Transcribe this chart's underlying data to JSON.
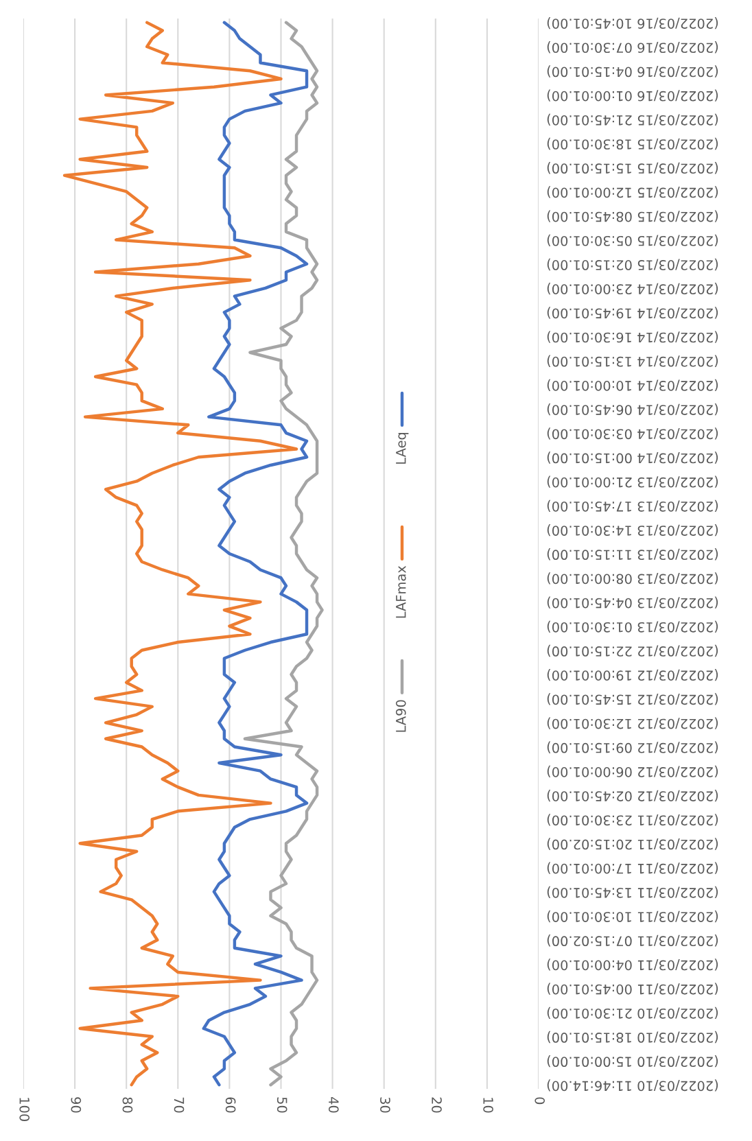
{
  "chart_data": {
    "type": "line",
    "orientation": "horizontal",
    "categories": [
      "(2022/03/16 10:45:01.00)",
      null,
      null,
      "(2022/03/16 07:30:01.00)",
      null,
      null,
      "(2022/03/16 04:15:01.00)",
      null,
      null,
      "(2022/03/16 01:00:01.00)",
      null,
      null,
      "(2022/03/15 21:45:01.00)",
      null,
      null,
      "(2022/03/15 18:30:01.00)",
      null,
      null,
      "(2022/03/15 15:15:01.00)",
      null,
      null,
      "(2022/03/15 12:00:01.00)",
      null,
      null,
      "(2022/03/15 08:45:01.00)",
      null,
      null,
      "(2022/03/15 05:30:01.00)",
      null,
      null,
      "(2022/03/15 02:15:01.00)",
      null,
      null,
      "(2022/03/14 23:00:01.00)",
      null,
      null,
      "(2022/03/14 19:45:01.00)",
      null,
      null,
      "(2022/03/14 16:30:01.00)",
      null,
      null,
      "(2022/03/14 13:15:01.00)",
      null,
      null,
      "(2022/03/14 10:00:01.00)",
      null,
      null,
      "(2022/03/14 06:45:01.00)",
      null,
      null,
      "(2022/03/14 03:30:01.00)",
      null,
      null,
      "(2022/03/14 00:15:01.00)",
      null,
      null,
      "(2022/03/13 21:00:01.00)",
      null,
      null,
      "(2022/03/13 17:45:01.00)",
      null,
      null,
      "(2022/03/13 14:30:01.00)",
      null,
      null,
      "(2022/03/13 11:15:01.00)",
      null,
      null,
      "(2022/03/13 08:00:01.00)",
      null,
      null,
      "(2022/03/13 04:45:01.00)",
      null,
      null,
      "(2022/03/13 01:30:01.00)",
      null,
      null,
      "(2022/03/12 22:15:01.00)",
      null,
      null,
      "(2022/03/12 19:00:01.00)",
      null,
      null,
      "(2022/03/12 15:45:01.00)",
      null,
      null,
      "(2022/03/12 12:30:01.00)",
      null,
      null,
      "(2022/03/12 09:15:01.00)",
      null,
      null,
      "(2022/03/12 06:00:01.00)",
      null,
      null,
      "(2022/03/12 02:45:01.00)",
      null,
      null,
      "(2022/03/11 23:30:01.00)",
      null,
      null,
      "(2022/03/11 20:15:02.00)",
      null,
      null,
      "(2022/03/11 17:00:01.00)",
      null,
      null,
      "(2022/03/11 13:45:01.00)",
      null,
      null,
      "(2022/03/11 10:30:01.00)",
      null,
      null,
      "(2022/03/11 07:15:02.00)",
      null,
      null,
      "(2022/03/11 04:00:01.00)",
      null,
      null,
      "(2022/03/11 00:45:01.00)",
      null,
      null,
      "(2022/03/10 21:30:01.00)",
      null,
      null,
      "(2022/03/10 18:15:01.00)",
      null,
      null,
      "(2022/03/10 15:00:01.00)",
      null,
      null,
      "(2022/03/10 11:46:14.00)"
    ],
    "series": [
      {
        "name": "LAeq",
        "color": "#4472c4",
        "values": [
          61,
          59,
          58,
          56,
          54,
          54,
          45,
          45,
          45,
          52,
          50,
          57,
          60,
          61,
          61,
          60,
          61,
          62,
          60,
          61,
          61,
          61,
          61,
          61,
          60,
          60,
          59,
          59,
          50,
          47,
          45,
          49,
          49,
          53,
          59,
          58,
          61,
          60,
          60,
          61,
          60,
          61,
          62,
          63,
          61,
          60,
          59,
          59,
          60,
          64,
          50,
          49,
          45,
          46,
          45,
          52,
          57,
          60,
          62,
          60,
          61,
          60,
          59,
          60,
          61,
          62,
          60,
          56,
          54,
          50,
          49,
          50,
          47,
          45,
          45,
          45,
          45,
          52,
          57,
          61,
          61,
          61,
          59,
          60,
          61,
          60,
          61,
          62,
          61,
          61,
          59,
          50,
          62,
          54,
          52,
          47,
          47,
          45,
          49,
          56,
          59,
          60,
          61,
          61,
          62,
          61,
          60,
          62,
          63,
          62,
          61,
          60,
          60,
          58,
          59,
          59,
          50,
          55,
          50,
          46,
          55,
          53,
          56,
          61,
          64,
          65,
          61,
          60,
          59,
          61,
          61,
          63,
          62
        ]
      },
      {
        "name": "LAFmax",
        "color": "#ed7d31",
        "values": [
          76,
          73,
          75,
          76,
          72,
          73,
          56,
          50,
          63,
          84,
          71,
          75,
          89,
          78,
          78,
          77,
          76,
          89,
          76,
          92,
          86,
          80,
          78,
          76,
          77,
          79,
          75,
          82,
          59,
          56,
          66,
          86,
          56,
          71,
          82,
          75,
          80,
          77,
          77,
          77,
          78,
          79,
          80,
          78,
          86,
          78,
          77,
          77,
          73,
          88,
          68,
          70,
          54,
          47,
          66,
          71,
          75,
          78,
          84,
          82,
          78,
          77,
          78,
          77,
          77,
          77,
          78,
          77,
          73,
          68,
          66,
          68,
          54,
          61,
          56,
          60,
          56,
          70,
          77,
          79,
          79,
          78,
          80,
          77,
          86,
          75,
          78,
          84,
          77,
          84,
          77,
          75,
          72,
          70,
          73,
          70,
          66,
          52,
          70,
          75,
          75,
          77,
          89,
          78,
          82,
          82,
          81,
          82,
          85,
          79,
          77,
          75,
          74,
          75,
          74,
          77,
          71,
          72,
          70,
          54,
          87,
          70,
          73,
          79,
          77,
          89,
          75,
          77,
          74,
          77,
          76,
          78,
          79
        ]
      },
      {
        "name": "LA90",
        "color": "#a5a5a5",
        "values": [
          49,
          47,
          48,
          46,
          45,
          44,
          43,
          44,
          43,
          44,
          43,
          45,
          45,
          46,
          47,
          47,
          47,
          49,
          47,
          49,
          49,
          48,
          49,
          47,
          47,
          49,
          49,
          45,
          45,
          44,
          43,
          44,
          43,
          44,
          46,
          46,
          46,
          47,
          50,
          48,
          49,
          56,
          50,
          50,
          49,
          49,
          48,
          50,
          49,
          47,
          45,
          44,
          43,
          43,
          43,
          43,
          43,
          45,
          46,
          47,
          47,
          46,
          46,
          47,
          48,
          47,
          47,
          46,
          45,
          43,
          44,
          43,
          43,
          42,
          43,
          43,
          44,
          45,
          44,
          45,
          47,
          48,
          47,
          47,
          49,
          47,
          48,
          49,
          48,
          57,
          46,
          47,
          45,
          43,
          44,
          43,
          43,
          44,
          45,
          45,
          46,
          47,
          49,
          49,
          48,
          49,
          50,
          49,
          52,
          52,
          50,
          52,
          49,
          48,
          48,
          47,
          44,
          44,
          44,
          43,
          44,
          45,
          46,
          48,
          47,
          47,
          48,
          48,
          47,
          49,
          52,
          50,
          52
        ]
      }
    ],
    "xlim": [
      100,
      0
    ],
    "xticks": [
      100,
      90,
      80,
      70,
      60,
      50,
      40,
      30,
      20,
      10,
      0
    ],
    "grid": "x",
    "legend": "right",
    "line_style": "solid",
    "marker": "none"
  }
}
